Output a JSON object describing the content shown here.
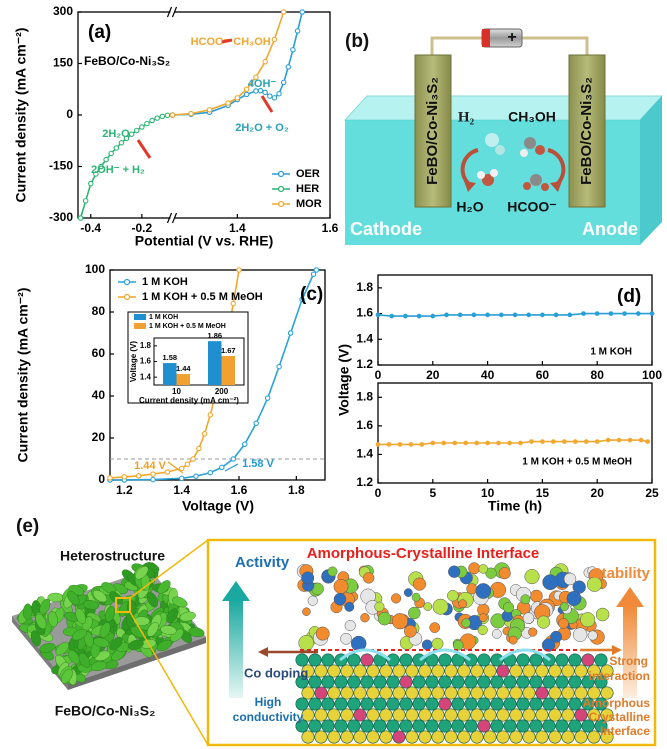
{
  "chart_data": [
    {
      "type": "line",
      "title": "(a)",
      "subtitle": "FeBO/Co-Ni₃S₂",
      "xlabel": "Potential (V vs. RHE)",
      "ylabel": "Current density (mA cm⁻²)",
      "xlim": [
        -0.45,
        1.6
      ],
      "xbreak": [
        -0.08,
        1.26
      ],
      "xticks": [
        -0.4,
        -0.2,
        1.4,
        1.6
      ],
      "ylim": [
        -300,
        300
      ],
      "yticks": [
        -300,
        -150,
        0,
        150,
        300
      ],
      "legend": "lower right",
      "series": [
        {
          "name": "OER",
          "color": "#2a9fd6",
          "x": [
            1.26,
            1.3,
            1.34,
            1.38,
            1.4,
            1.42,
            1.44,
            1.45,
            1.46,
            1.47,
            1.48,
            1.49,
            1.5,
            1.51,
            1.52,
            1.53,
            1.54
          ],
          "values": [
            0,
            2,
            8,
            28,
            45,
            60,
            70,
            71,
            66,
            55,
            50,
            62,
            95,
            140,
            190,
            245,
            300
          ]
        },
        {
          "name": "HER",
          "color": "#2bb673",
          "x": [
            -0.44,
            -0.42,
            -0.4,
            -0.38,
            -0.36,
            -0.34,
            -0.32,
            -0.3,
            -0.28,
            -0.26,
            -0.24,
            -0.22,
            -0.2,
            -0.18,
            -0.16,
            -0.14,
            -0.12,
            -0.1,
            -0.08
          ],
          "values": [
            -300,
            -250,
            -200,
            -172,
            -150,
            -130,
            -112,
            -96,
            -81,
            -68,
            -56,
            -45,
            -35,
            -25,
            -16,
            -9,
            -4,
            -1,
            0
          ]
        },
        {
          "name": "MOR",
          "color": "#f0a830",
          "x": [
            1.26,
            1.3,
            1.34,
            1.38,
            1.4,
            1.42,
            1.44,
            1.46,
            1.48,
            1.5
          ],
          "values": [
            0,
            4,
            15,
            35,
            50,
            75,
            110,
            155,
            220,
            300
          ]
        }
      ],
      "annotations": [
        "HCOO⁻",
        "CH₃OH",
        "4OH⁻",
        "2H₂O + O₂",
        "2H₂O",
        "2OH⁻ + H₂"
      ]
    },
    {
      "type": "line",
      "title": "(c)",
      "xlabel": "Voltage (V)",
      "ylabel": "Current density (mA cm⁻²)",
      "xlim": [
        1.15,
        1.9
      ],
      "xticks": [
        1.2,
        1.4,
        1.6,
        1.8
      ],
      "ylim": [
        0,
        100
      ],
      "yticks": [
        0,
        20,
        40,
        60,
        80,
        100
      ],
      "legend": "upper left",
      "reference_line": 10,
      "series": [
        {
          "name": "1 M KOH",
          "color": "#29a3d9",
          "x": [
            1.15,
            1.2,
            1.3,
            1.4,
            1.45,
            1.5,
            1.54,
            1.58,
            1.62,
            1.66,
            1.7,
            1.74,
            1.78,
            1.82,
            1.86,
            1.87
          ],
          "values": [
            0,
            0,
            0.2,
            0.8,
            1.8,
            3.5,
            6,
            10,
            17,
            27,
            39,
            54,
            70,
            86,
            98,
            100
          ]
        },
        {
          "name": "1 M KOH + 0.5 M MeOH",
          "color": "#f2a72b",
          "x": [
            1.15,
            1.2,
            1.25,
            1.3,
            1.35,
            1.4,
            1.42,
            1.44,
            1.46,
            1.48,
            1.5,
            1.52,
            1.54,
            1.56,
            1.58,
            1.6
          ],
          "values": [
            1,
            1.5,
            2,
            2.8,
            3.8,
            5.5,
            7.5,
            10,
            15,
            22,
            31,
            42,
            55,
            69,
            84,
            100
          ]
        }
      ],
      "annotations": [
        "1.44 V",
        "1.58 V"
      ]
    },
    {
      "type": "bar",
      "xlabel": "Current density (mA cm⁻²)",
      "ylabel": "Voltage (V)",
      "categories": [
        "10",
        "200"
      ],
      "ylim": [
        1.3,
        1.9
      ],
      "yticks": [
        1.4,
        1.6,
        1.8
      ],
      "legend": "upper left",
      "series": [
        {
          "name": "1 M KOH",
          "color": "#1f8fd0",
          "values": [
            1.58,
            1.86
          ]
        },
        {
          "name": "1 M KOH + 0.5 M MeOH",
          "color": "#f2a030",
          "values": [
            1.44,
            1.67
          ]
        }
      ]
    },
    {
      "type": "line",
      "title": "(d)",
      "ylabel": "Voltage (V)",
      "xlim": [
        0,
        100
      ],
      "xticks": [
        0,
        20,
        40,
        60,
        80,
        100
      ],
      "ylim": [
        1.2,
        1.9
      ],
      "yticks": [
        1.2,
        1.4,
        1.6,
        1.8
      ],
      "series": [
        {
          "name": "1 M KOH",
          "color": "#2a9fd6",
          "x": [
            0,
            5,
            10,
            15,
            20,
            25,
            30,
            35,
            40,
            45,
            50,
            55,
            60,
            65,
            70,
            75,
            80,
            85,
            90,
            95,
            100
          ],
          "values": [
            1.59,
            1.58,
            1.58,
            1.58,
            1.58,
            1.59,
            1.59,
            1.59,
            1.59,
            1.59,
            1.59,
            1.59,
            1.59,
            1.59,
            1.59,
            1.6,
            1.6,
            1.6,
            1.6,
            1.6,
            1.6
          ]
        }
      ]
    },
    {
      "type": "line",
      "xlabel": "Time (h)",
      "xlim": [
        0,
        25
      ],
      "xticks": [
        0,
        5,
        10,
        15,
        20,
        25
      ],
      "ylim": [
        1.2,
        1.9
      ],
      "yticks": [
        1.2,
        1.4,
        1.6,
        1.8
      ],
      "series": [
        {
          "name": "1 M KOH + 0.5 M MeOH",
          "color": "#f0a830",
          "x": [
            0,
            1,
            2,
            3,
            4,
            5,
            6,
            7,
            8,
            9,
            10,
            11,
            12,
            13,
            14,
            15,
            16,
            17,
            18,
            19,
            20,
            21,
            22,
            23,
            24,
            24.6
          ],
          "values": [
            1.47,
            1.47,
            1.47,
            1.47,
            1.47,
            1.48,
            1.48,
            1.48,
            1.48,
            1.48,
            1.48,
            1.48,
            1.48,
            1.48,
            1.49,
            1.49,
            1.49,
            1.49,
            1.49,
            1.49,
            1.49,
            1.5,
            1.5,
            1.5,
            1.5,
            1.49
          ]
        }
      ]
    }
  ],
  "panel_b": {
    "label": "(b)",
    "battery": "+",
    "electrodes": [
      "FeBO/Co-Ni₃S₂",
      "FeBO/Co-Ni₃S₂"
    ],
    "species": [
      "H₂",
      "CH₃OH",
      "H₂O",
      "HCOO⁻"
    ],
    "cathode": "Cathode",
    "anode": "Anode"
  },
  "panel_e": {
    "label": "(e)",
    "heterostructure": "Heterostructure",
    "material": "FeBO/Co-Ni₃S₂",
    "activity": "Activity",
    "interface_title": "Amorphous-Crystalline Interface",
    "stability": "Stability",
    "co_doping": "Co doping",
    "strong_interaction": [
      "Strong",
      "interaction"
    ],
    "high_conductivity": [
      "High",
      "conductivity"
    ],
    "interface_label": [
      "Amorphous",
      "Crystalline",
      "Interface"
    ]
  }
}
